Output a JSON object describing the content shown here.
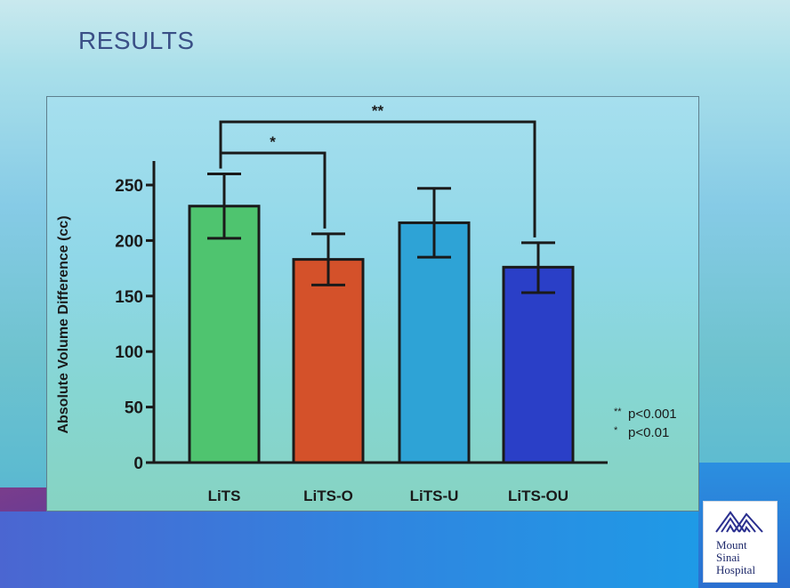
{
  "slide": {
    "title": "RESULTS"
  },
  "chart_data": {
    "type": "bar",
    "categories": [
      "LiTS",
      "LiTS-O",
      "LiTS-U",
      "LiTS-OU"
    ],
    "values": [
      231,
      183,
      216,
      176
    ],
    "error_upper": [
      260,
      206,
      247,
      198
    ],
    "error_lower": [
      202,
      160,
      185,
      153
    ],
    "title": "",
    "xlabel": "",
    "ylabel": "Absolute Volume Difference (cc)",
    "ylim": [
      0,
      270
    ],
    "yticks": [
      "0",
      "50",
      "100",
      "150",
      "200",
      "250"
    ],
    "grid": false,
    "bar_colors": [
      "#4fc46f",
      "#d4512a",
      "#2ea3d6",
      "#2a3fc7"
    ],
    "significance": [
      {
        "from": 0,
        "to": 1,
        "label": "*"
      },
      {
        "from": 0,
        "to": 3,
        "label": "**"
      }
    ],
    "legend_notes": [
      {
        "mark": "**",
        "text": "p<0.001"
      },
      {
        "mark": "*",
        "text": "p<0.01"
      }
    ]
  },
  "logo": {
    "name": "mount-sinai-logo",
    "lines": [
      "Mount",
      "Sinai",
      "Hospital"
    ]
  }
}
